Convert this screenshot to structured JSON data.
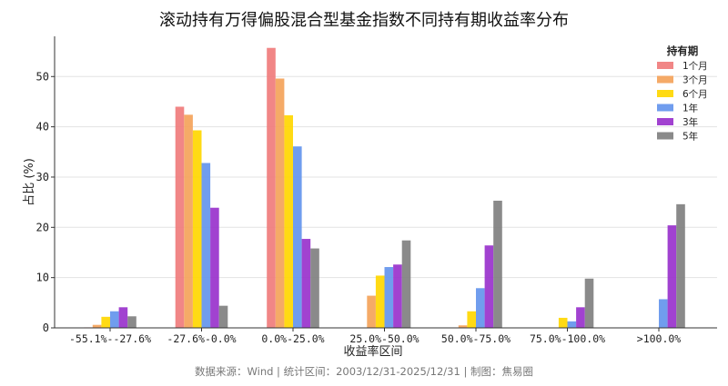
{
  "chart_data": {
    "type": "bar",
    "title": "滚动持有万得偏股混合型基金指数不同持有期收益率分布",
    "xlabel": "收益率区间",
    "ylabel": "占比 (%)",
    "ylim": [
      0,
      58
    ],
    "yticks": [
      0,
      10,
      20,
      30,
      40,
      50
    ],
    "grid": true,
    "legend_title": "持有期",
    "legend_position": "top-right",
    "categories": [
      "-55.1%--27.6%",
      "-27.6%-0.0%",
      "0.0%-25.0%",
      "25.0%-50.0%",
      "50.0%-75.0%",
      "75.0%-100.0%",
      ">100.0%"
    ],
    "series": [
      {
        "name": "1个月",
        "color": "#f07c7c",
        "values": [
          0.1,
          44.0,
          55.7,
          0.0,
          0.0,
          0.0,
          0.0
        ]
      },
      {
        "name": "3个月",
        "color": "#f4a35a",
        "values": [
          0.6,
          42.4,
          49.6,
          6.4,
          0.5,
          0.0,
          0.0
        ]
      },
      {
        "name": "6个月",
        "color": "#ffd700",
        "values": [
          2.2,
          39.3,
          42.3,
          10.4,
          3.3,
          2.0,
          0.0
        ]
      },
      {
        "name": "1年",
        "color": "#6495ed",
        "values": [
          3.3,
          32.8,
          36.1,
          12.1,
          7.9,
          1.3,
          5.7
        ]
      },
      {
        "name": "3年",
        "color": "#9932cc",
        "values": [
          4.1,
          23.9,
          17.7,
          12.6,
          16.4,
          4.1,
          20.4
        ]
      },
      {
        "name": "5年",
        "color": "#808080",
        "values": [
          2.3,
          4.4,
          15.8,
          17.4,
          25.3,
          9.8,
          24.6
        ]
      }
    ]
  },
  "footer": {
    "note": "数据来源：Wind | 统计区间：2003/12/31-2025/12/31 | 制图：焦易圈"
  }
}
